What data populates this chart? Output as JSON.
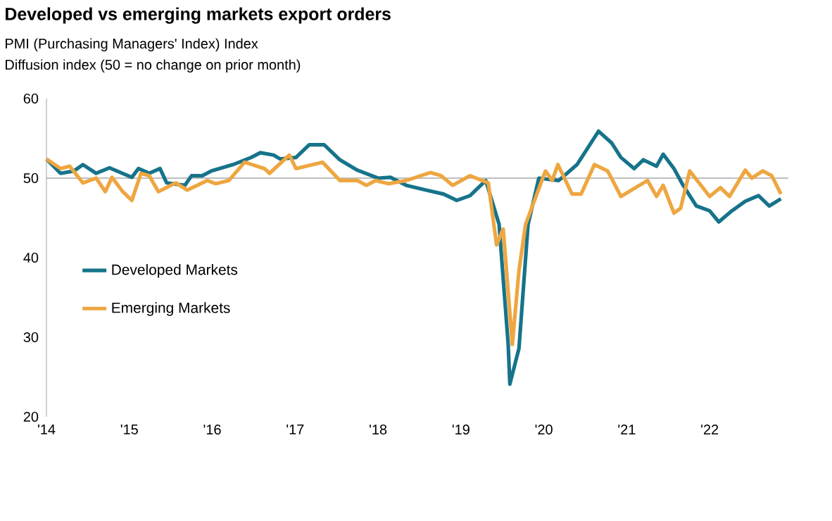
{
  "chart_data": {
    "type": "line",
    "title": "Developed vs emerging markets export orders",
    "subtitle": "PMI (Purchasing Managers' Index) Index",
    "ylabel": "Diffusion index (50 = no change on prior month)",
    "xlim": [
      2014,
      2022.95
    ],
    "ylim": [
      20,
      60
    ],
    "yticks": [
      20,
      30,
      40,
      50,
      60
    ],
    "xticks": [
      {
        "value": 2014,
        "label": "'14"
      },
      {
        "value": 2015,
        "label": "'15"
      },
      {
        "value": 2016,
        "label": "'16"
      },
      {
        "value": 2017,
        "label": "'17"
      },
      {
        "value": 2018,
        "label": "'18"
      },
      {
        "value": 2019,
        "label": "'19"
      },
      {
        "value": 2020,
        "label": "'20"
      },
      {
        "value": 2021,
        "label": "'21"
      },
      {
        "value": 2022,
        "label": "'22"
      }
    ],
    "grid": false,
    "legend": "left",
    "line_style": "solid",
    "marker": "none",
    "ref_lines": [
      {
        "axis": "y",
        "value": 50,
        "color": "#808080"
      }
    ],
    "series": [
      {
        "name": "Developed Markets",
        "color": "#16738a",
        "x": [
          2014.0,
          2014.17,
          2014.33,
          2014.44,
          2014.6,
          2014.76,
          2015.03,
          2015.11,
          2015.24,
          2015.37,
          2015.45,
          2015.67,
          2015.75,
          2015.88,
          2015.99,
          2016.25,
          2016.47,
          2016.58,
          2016.74,
          2016.82,
          2017.01,
          2017.17,
          2017.35,
          2017.54,
          2017.75,
          2018.0,
          2018.15,
          2018.34,
          2018.58,
          2018.79,
          2018.95,
          2019.11,
          2019.3,
          2019.46,
          2019.57,
          2019.59,
          2019.7,
          2019.81,
          2019.94,
          2020.18,
          2020.4,
          2020.66,
          2020.82,
          2020.93,
          2021.09,
          2021.2,
          2021.36,
          2021.44,
          2021.57,
          2021.68,
          2021.84,
          2022.0,
          2022.11,
          2022.27,
          2022.43,
          2022.59,
          2022.72,
          2022.86
        ],
        "values": [
          52.4,
          50.6,
          50.9,
          51.7,
          50.6,
          51.3,
          50.1,
          51.2,
          50.6,
          51.2,
          49.4,
          49.1,
          50.3,
          50.3,
          50.9,
          51.7,
          52.6,
          53.2,
          52.9,
          52.4,
          52.6,
          54.2,
          54.2,
          52.3,
          51.0,
          50.0,
          50.1,
          49.1,
          48.5,
          48.0,
          47.2,
          47.8,
          49.7,
          44.2,
          29.1,
          24.1,
          28.6,
          44.2,
          50.0,
          49.7,
          51.7,
          55.9,
          54.4,
          52.6,
          51.2,
          52.3,
          51.5,
          53.0,
          51.2,
          49.1,
          46.5,
          45.9,
          44.5,
          45.9,
          47.1,
          47.8,
          46.5,
          47.4
        ]
      },
      {
        "name": "Emerging Markets",
        "color": "#eea640",
        "x": [
          2014.0,
          2014.17,
          2014.28,
          2014.44,
          2014.6,
          2014.71,
          2014.79,
          2014.92,
          2015.03,
          2015.14,
          2015.24,
          2015.35,
          2015.56,
          2015.7,
          2015.94,
          2016.04,
          2016.2,
          2016.39,
          2016.63,
          2016.69,
          2016.93,
          2017.01,
          2017.33,
          2017.54,
          2017.75,
          2017.86,
          2017.97,
          2018.13,
          2018.34,
          2018.63,
          2018.76,
          2018.9,
          2019.11,
          2019.33,
          2019.43,
          2019.51,
          2019.62,
          2019.7,
          2019.78,
          2020.02,
          2020.1,
          2020.17,
          2020.34,
          2020.45,
          2020.61,
          2020.77,
          2020.93,
          2021.25,
          2021.36,
          2021.44,
          2021.57,
          2021.65,
          2021.76,
          2022.0,
          2022.13,
          2022.24,
          2022.43,
          2022.51,
          2022.64,
          2022.75,
          2022.86
        ],
        "values": [
          52.4,
          51.2,
          51.5,
          49.4,
          50.0,
          48.3,
          50.1,
          48.3,
          47.2,
          50.6,
          50.3,
          48.3,
          49.4,
          48.5,
          49.7,
          49.3,
          49.7,
          52.0,
          51.2,
          50.6,
          52.9,
          51.2,
          52.0,
          49.7,
          49.7,
          49.1,
          49.7,
          49.3,
          49.7,
          50.7,
          50.3,
          49.1,
          50.3,
          49.4,
          41.6,
          43.6,
          29.1,
          38.4,
          44.2,
          50.9,
          49.7,
          51.7,
          48.0,
          48.0,
          51.7,
          50.9,
          47.7,
          49.7,
          47.7,
          49.1,
          45.6,
          46.2,
          50.9,
          47.7,
          48.8,
          47.7,
          51.0,
          50.0,
          50.9,
          50.3,
          48.0
        ]
      }
    ]
  }
}
